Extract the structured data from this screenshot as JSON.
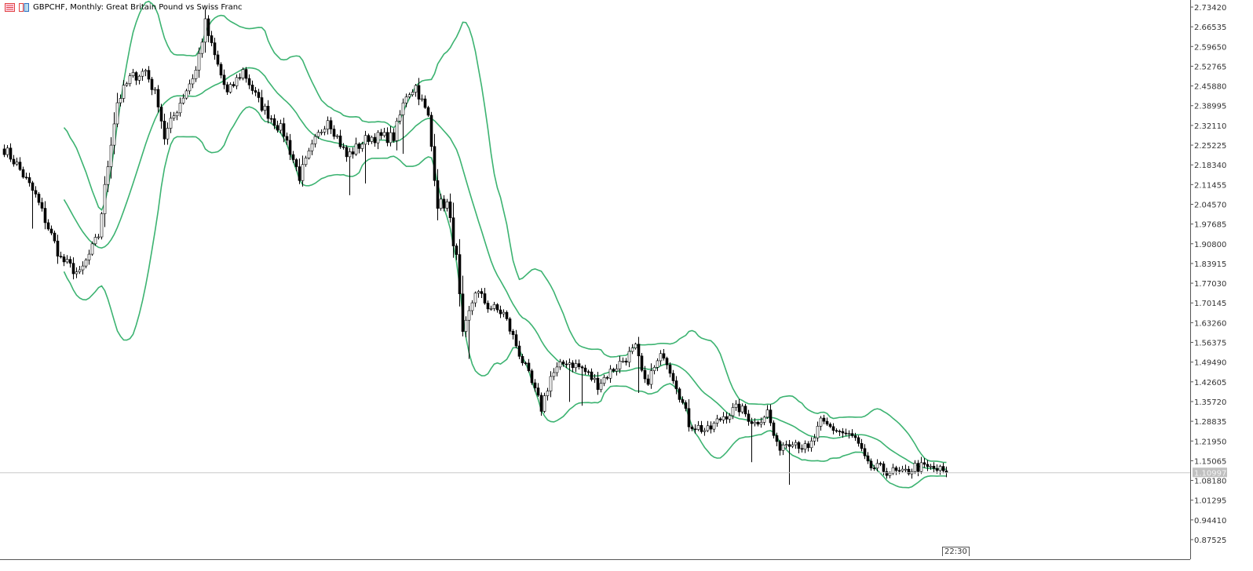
{
  "header": {
    "symbol_title": "GBPCHF, Monthly:  Great Britain Pound vs Swiss Franc",
    "icons": [
      "grid-list-icon",
      "chart-template-icon"
    ]
  },
  "time_tag": "22:30",
  "current_price_label": "1.10997",
  "colors": {
    "bands": "#3cb371",
    "candle": "#000000",
    "price_line": "#c8c8c8",
    "price_tag_bg": "#c0c0c0"
  },
  "chart_data": {
    "type": "candlestick",
    "title": "GBPCHF, Monthly:  Great Britain Pound vs Swiss Franc",
    "timeframe": "Monthly",
    "indicator": "Bollinger Bands",
    "ylim": [
      0.87525,
      2.7342
    ],
    "y_ticks": [
      "2.73420",
      "2.66535",
      "2.59650",
      "2.52765",
      "2.45880",
      "2.38995",
      "2.32110",
      "2.25225",
      "2.18340",
      "2.11455",
      "2.04570",
      "1.97685",
      "1.90800",
      "1.83915",
      "1.77030",
      "1.70145",
      "1.63260",
      "1.56375",
      "1.49490",
      "1.42605",
      "1.35720",
      "1.28835",
      "1.21950",
      "1.15065",
      "1.08180",
      "1.01295",
      "0.94410",
      "0.87525"
    ],
    "current_price": 1.10997,
    "close_keypoints": [
      [
        1,
        2.239
      ],
      [
        5,
        2.184
      ],
      [
        11,
        2.074
      ],
      [
        19,
        1.855
      ],
      [
        25,
        1.8
      ],
      [
        31,
        1.937
      ],
      [
        35,
        2.266
      ],
      [
        37,
        2.403
      ],
      [
        41,
        2.485
      ],
      [
        46,
        2.513
      ],
      [
        50,
        2.403
      ],
      [
        52,
        2.28
      ],
      [
        57,
        2.403
      ],
      [
        62,
        2.513
      ],
      [
        65,
        2.677
      ],
      [
        67,
        2.595
      ],
      [
        72,
        2.43
      ],
      [
        77,
        2.513
      ],
      [
        82,
        2.403
      ],
      [
        90,
        2.294
      ],
      [
        95,
        2.143
      ],
      [
        100,
        2.266
      ],
      [
        104,
        2.348
      ],
      [
        110,
        2.212
      ],
      [
        117,
        2.28
      ],
      [
        125,
        2.28
      ],
      [
        129,
        2.43
      ],
      [
        132,
        2.458
      ],
      [
        136,
        2.348
      ],
      [
        139,
        2.047
      ],
      [
        142,
        2.047
      ],
      [
        145,
        1.855
      ],
      [
        147,
        1.582
      ],
      [
        151,
        1.746
      ],
      [
        155,
        1.691
      ],
      [
        160,
        1.664
      ],
      [
        165,
        1.527
      ],
      [
        170,
        1.39
      ],
      [
        172,
        1.335
      ],
      [
        175,
        1.445
      ],
      [
        180,
        1.5
      ],
      [
        185,
        1.472
      ],
      [
        190,
        1.418
      ],
      [
        195,
        1.472
      ],
      [
        202,
        1.541
      ],
      [
        205,
        1.418
      ],
      [
        211,
        1.527
      ],
      [
        215,
        1.418
      ],
      [
        219,
        1.281
      ],
      [
        225,
        1.253
      ],
      [
        230,
        1.308
      ],
      [
        235,
        1.335
      ],
      [
        240,
        1.281
      ],
      [
        244,
        1.322
      ],
      [
        247,
        1.198
      ],
      [
        252,
        1.226
      ],
      [
        257,
        1.185
      ],
      [
        261,
        1.281
      ],
      [
        267,
        1.253
      ],
      [
        272,
        1.226
      ],
      [
        276,
        1.13
      ],
      [
        282,
        1.116
      ],
      [
        287,
        1.103
      ],
      [
        291,
        1.13
      ],
      [
        297,
        1.122
      ],
      [
        301,
        1.11
      ]
    ]
  }
}
